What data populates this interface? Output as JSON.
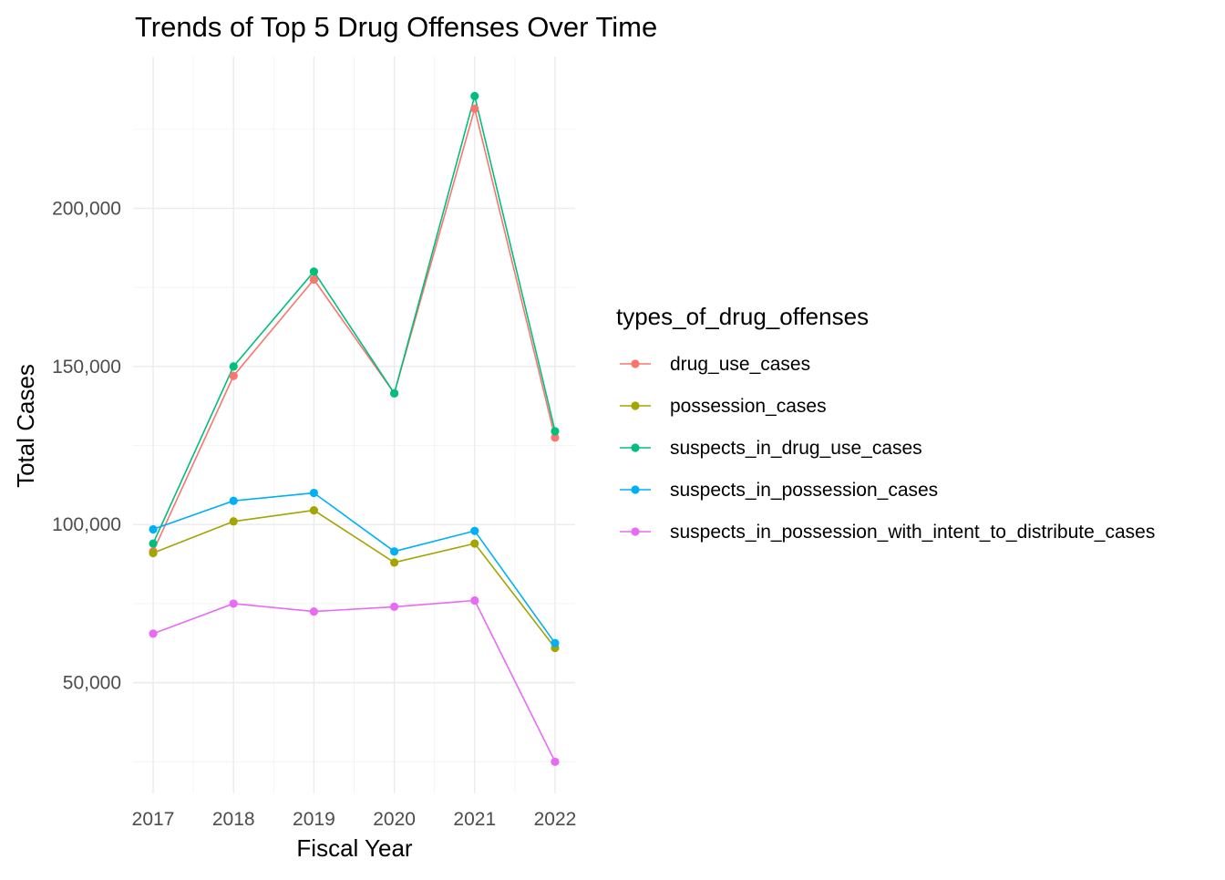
{
  "chart_data": {
    "type": "line",
    "title": "Trends of Top 5 Drug Offenses Over Time",
    "xlabel": "Fiscal Year",
    "ylabel": "Total Cases",
    "x": [
      2017,
      2018,
      2019,
      2020,
      2021,
      2022
    ],
    "x_tick_labels": [
      "2017",
      "2018",
      "2019",
      "2020",
      "2021",
      "2022"
    ],
    "y_ticks": [
      50000,
      100000,
      150000,
      200000
    ],
    "y_tick_labels": [
      "50,000",
      "100,000",
      "150,000",
      "200,000"
    ],
    "xlim": [
      2016.75,
      2022.25
    ],
    "ylim": [
      15000,
      248000
    ],
    "grid": true,
    "legend": {
      "title": "types_of_drug_offenses",
      "position": "right"
    },
    "series": [
      {
        "name": "drug_use_cases",
        "color": "#F8766D",
        "values": [
          91500,
          147000,
          177500,
          141500,
          231500,
          127500
        ]
      },
      {
        "name": "possession_cases",
        "color": "#A3A500",
        "values": [
          91000,
          101000,
          104500,
          88000,
          94000,
          61000
        ]
      },
      {
        "name": "suspects_in_drug_use_cases",
        "color": "#00BF7D",
        "values": [
          94000,
          150000,
          180000,
          141500,
          235500,
          129500
        ]
      },
      {
        "name": "suspects_in_possession_cases",
        "color": "#00B0F6",
        "values": [
          98500,
          107500,
          110000,
          91500,
          98000,
          62500
        ]
      },
      {
        "name": "suspects_in_possession_with_intent_to_distribute_cases",
        "color": "#E76BF3",
        "values": [
          65500,
          75000,
          72500,
          74000,
          76000,
          25000
        ]
      }
    ]
  }
}
